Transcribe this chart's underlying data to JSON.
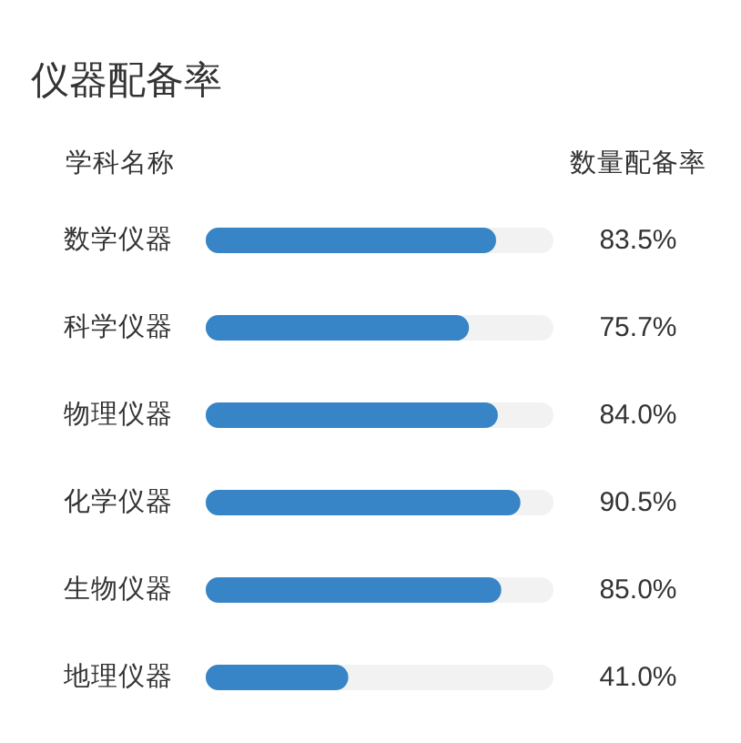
{
  "chart_data": {
    "type": "bar",
    "orientation": "horizontal",
    "title": "仪器配备率",
    "ylabel": "学科名称",
    "xlabel": "数量配备率",
    "categories": [
      "数学仪器",
      "科学仪器",
      "物理仪器",
      "化学仪器",
      "生物仪器",
      "地理仪器"
    ],
    "values": [
      83.5,
      75.7,
      84.0,
      90.5,
      85.0,
      41.0
    ],
    "value_labels": [
      "83.5%",
      "75.7%",
      "84.0%",
      "90.5%",
      "85.0%",
      "41.0%"
    ],
    "color": "#3785c6",
    "xlim": [
      0,
      100
    ],
    "tick_labels": "y"
  }
}
